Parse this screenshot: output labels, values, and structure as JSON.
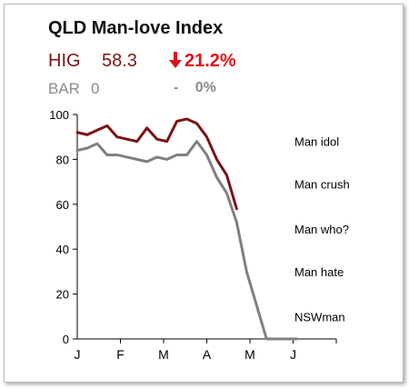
{
  "title": "QLD Man-love Index",
  "hig": {
    "name": "HIG",
    "value": "58.3",
    "change": "21.2%",
    "arrow": "down-arrow-icon"
  },
  "bar": {
    "name": "BAR",
    "value": "0",
    "change_symbol": "-",
    "change": "0%"
  },
  "colors": {
    "hig": "#7a1416",
    "bar": "#808080",
    "change": "#e0101a",
    "axis": "#000000"
  },
  "chart_data": {
    "type": "line",
    "x_ticks": [
      "J",
      "F",
      "M",
      "A",
      "M",
      "J"
    ],
    "y_ticks": [
      0,
      20,
      40,
      60,
      80,
      100
    ],
    "ylim": [
      0,
      100
    ],
    "x_range": [
      0,
      26
    ],
    "grid": false,
    "series": [
      {
        "name": "HIG",
        "color": "#7a1416",
        "x": [
          0,
          1,
          2,
          3,
          4,
          5,
          6,
          7,
          8,
          9,
          10,
          11,
          12,
          13,
          14,
          15,
          16,
          17
        ],
        "values": [
          92,
          91,
          93,
          95,
          90,
          89,
          88,
          94,
          89,
          88,
          97,
          98,
          96,
          90,
          80,
          73,
          58,
          null
        ]
      },
      {
        "name": "BAR",
        "color": "#808080",
        "x": [
          0,
          1,
          2,
          3,
          4,
          5,
          6,
          7,
          8,
          9,
          10,
          11,
          12,
          13,
          14,
          15,
          16,
          17,
          18,
          19,
          20,
          21,
          22
        ],
        "values": [
          84,
          85,
          87,
          82,
          82,
          81,
          80,
          79,
          81,
          80,
          82,
          82,
          88,
          82,
          72,
          65,
          52,
          30,
          15,
          0,
          0,
          0,
          0
        ]
      }
    ],
    "band_labels": [
      {
        "text": "Man idol",
        "y": 88
      },
      {
        "text": "Man crush",
        "y": 69
      },
      {
        "text": "Man who?",
        "y": 49
      },
      {
        "text": "Man hate",
        "y": 30
      },
      {
        "text": "NSWman",
        "y": 10
      }
    ]
  }
}
